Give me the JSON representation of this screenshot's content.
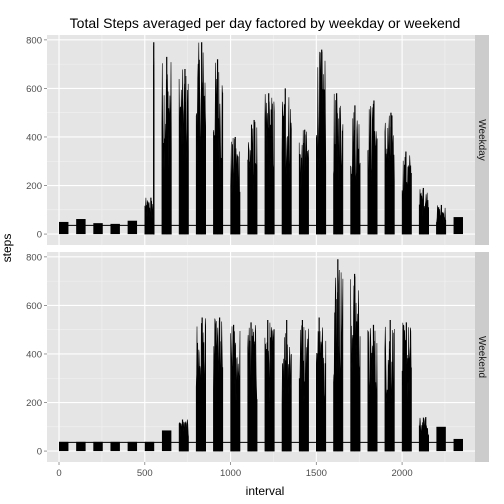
{
  "chart_data": {
    "type": "line",
    "title": "Total Steps averaged per day factored by weekday or weekend",
    "xlabel": "interval",
    "ylabel": "steps",
    "xlim": [
      -70,
      2425
    ],
    "ylim": [
      -45,
      820
    ],
    "x_ticks": [
      0,
      500,
      1000,
      1500,
      2000
    ],
    "y_ticks": [
      0,
      200,
      400,
      600,
      800
    ],
    "grid": true,
    "panel_background": "#e5e5e5",
    "strip_background": "#cccccc",
    "line_color": "#000000",
    "facet_by": "day type",
    "panels": [
      {
        "label": "Weekday",
        "series": {
          "type": "step-blocks",
          "baseline": 36,
          "low_level": 0,
          "blocks": [
            [
              0,
              55,
              50
            ],
            [
              100,
              155,
              62
            ],
            [
              200,
              255,
              45
            ],
            [
              300,
              355,
              42
            ],
            [
              400,
              455,
              55
            ],
            [
              500,
              555,
              150
            ],
            [
              550,
              555,
              790
            ],
            [
              600,
              655,
              730
            ],
            [
              700,
              755,
              680
            ],
            [
              800,
              855,
              790
            ],
            [
              900,
              955,
              720
            ],
            [
              1000,
              1055,
              400
            ],
            [
              1100,
              1155,
              470
            ],
            [
              1200,
              1255,
              580
            ],
            [
              1300,
              1355,
              600
            ],
            [
              1400,
              1455,
              430
            ],
            [
              1500,
              1555,
              760
            ],
            [
              1600,
              1655,
              580
            ],
            [
              1700,
              1755,
              530
            ],
            [
              1800,
              1855,
              550
            ],
            [
              1900,
              1955,
              500
            ],
            [
              2000,
              2055,
              340
            ],
            [
              2100,
              2155,
              190
            ],
            [
              2200,
              2255,
              120
            ],
            [
              2300,
              2355,
              70
            ]
          ]
        }
      },
      {
        "label": "Weekend",
        "series": {
          "type": "step-blocks",
          "baseline": 36,
          "low_level": 0,
          "blocks": [
            [
              0,
              55,
              38
            ],
            [
              100,
              155,
              38
            ],
            [
              200,
              255,
              38
            ],
            [
              300,
              355,
              38
            ],
            [
              400,
              455,
              38
            ],
            [
              500,
              555,
              38
            ],
            [
              600,
              655,
              85
            ],
            [
              700,
              755,
              130
            ],
            [
              800,
              855,
              550
            ],
            [
              900,
              955,
              550
            ],
            [
              1000,
              1055,
              520
            ],
            [
              1100,
              1155,
              530
            ],
            [
              1200,
              1255,
              540
            ],
            [
              1300,
              1355,
              540
            ],
            [
              1400,
              1455,
              540
            ],
            [
              1500,
              1555,
              550
            ],
            [
              1600,
              1655,
              790
            ],
            [
              1700,
              1755,
              730
            ],
            [
              1800,
              1855,
              520
            ],
            [
              1900,
              1955,
              540
            ],
            [
              2000,
              2055,
              530
            ],
            [
              2100,
              2155,
              140
            ],
            [
              2200,
              2255,
              100
            ],
            [
              2300,
              2355,
              50
            ]
          ]
        }
      }
    ]
  }
}
